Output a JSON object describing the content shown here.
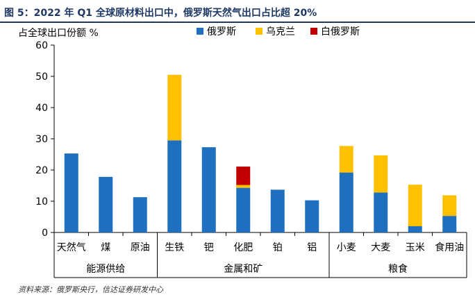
{
  "figure_title": "图 5：2022 年 Q1 全球原材料出口中，俄罗斯天然气出口占比超 20%",
  "source_note": "资料来源：俄罗斯央行，信达证券研发中心",
  "chart_data": {
    "type": "bar",
    "stacked": true,
    "ylabel": "占全球出口份额 %",
    "ylim": [
      0,
      60
    ],
    "yticks": [
      0,
      10,
      20,
      30,
      40,
      50,
      60
    ],
    "grid": false,
    "legend_position": "top",
    "categories": [
      "天然气",
      "煤",
      "原油",
      "生铁",
      "钯",
      "化肥",
      "铂",
      "铝",
      "小麦",
      "大麦",
      "玉米",
      "食用油"
    ],
    "groups": [
      {
        "label": "能源供给",
        "categories": [
          "天然气",
          "煤",
          "原油"
        ]
      },
      {
        "label": "金属和矿",
        "categories": [
          "生铁",
          "钯",
          "化肥",
          "铂",
          "铝"
        ]
      },
      {
        "label": "粮食",
        "categories": [
          "小麦",
          "大麦",
          "玉米",
          "食用油"
        ]
      }
    ],
    "series": [
      {
        "name": "俄罗斯",
        "color": "#1f6fbf",
        "values": [
          25.3,
          17.8,
          11.3,
          29.5,
          27.3,
          14.3,
          13.7,
          10.3,
          19.2,
          12.8,
          2.0,
          5.3
        ]
      },
      {
        "name": "乌克兰",
        "color": "#ffc000",
        "values": [
          0,
          0,
          0,
          21.0,
          0,
          0.9,
          0,
          0,
          8.5,
          11.9,
          13.3,
          6.6
        ]
      },
      {
        "name": "白俄罗斯",
        "color": "#c00000",
        "values": [
          0,
          0,
          0,
          0,
          0,
          5.9,
          0,
          0,
          0,
          0,
          0,
          0
        ]
      }
    ]
  }
}
